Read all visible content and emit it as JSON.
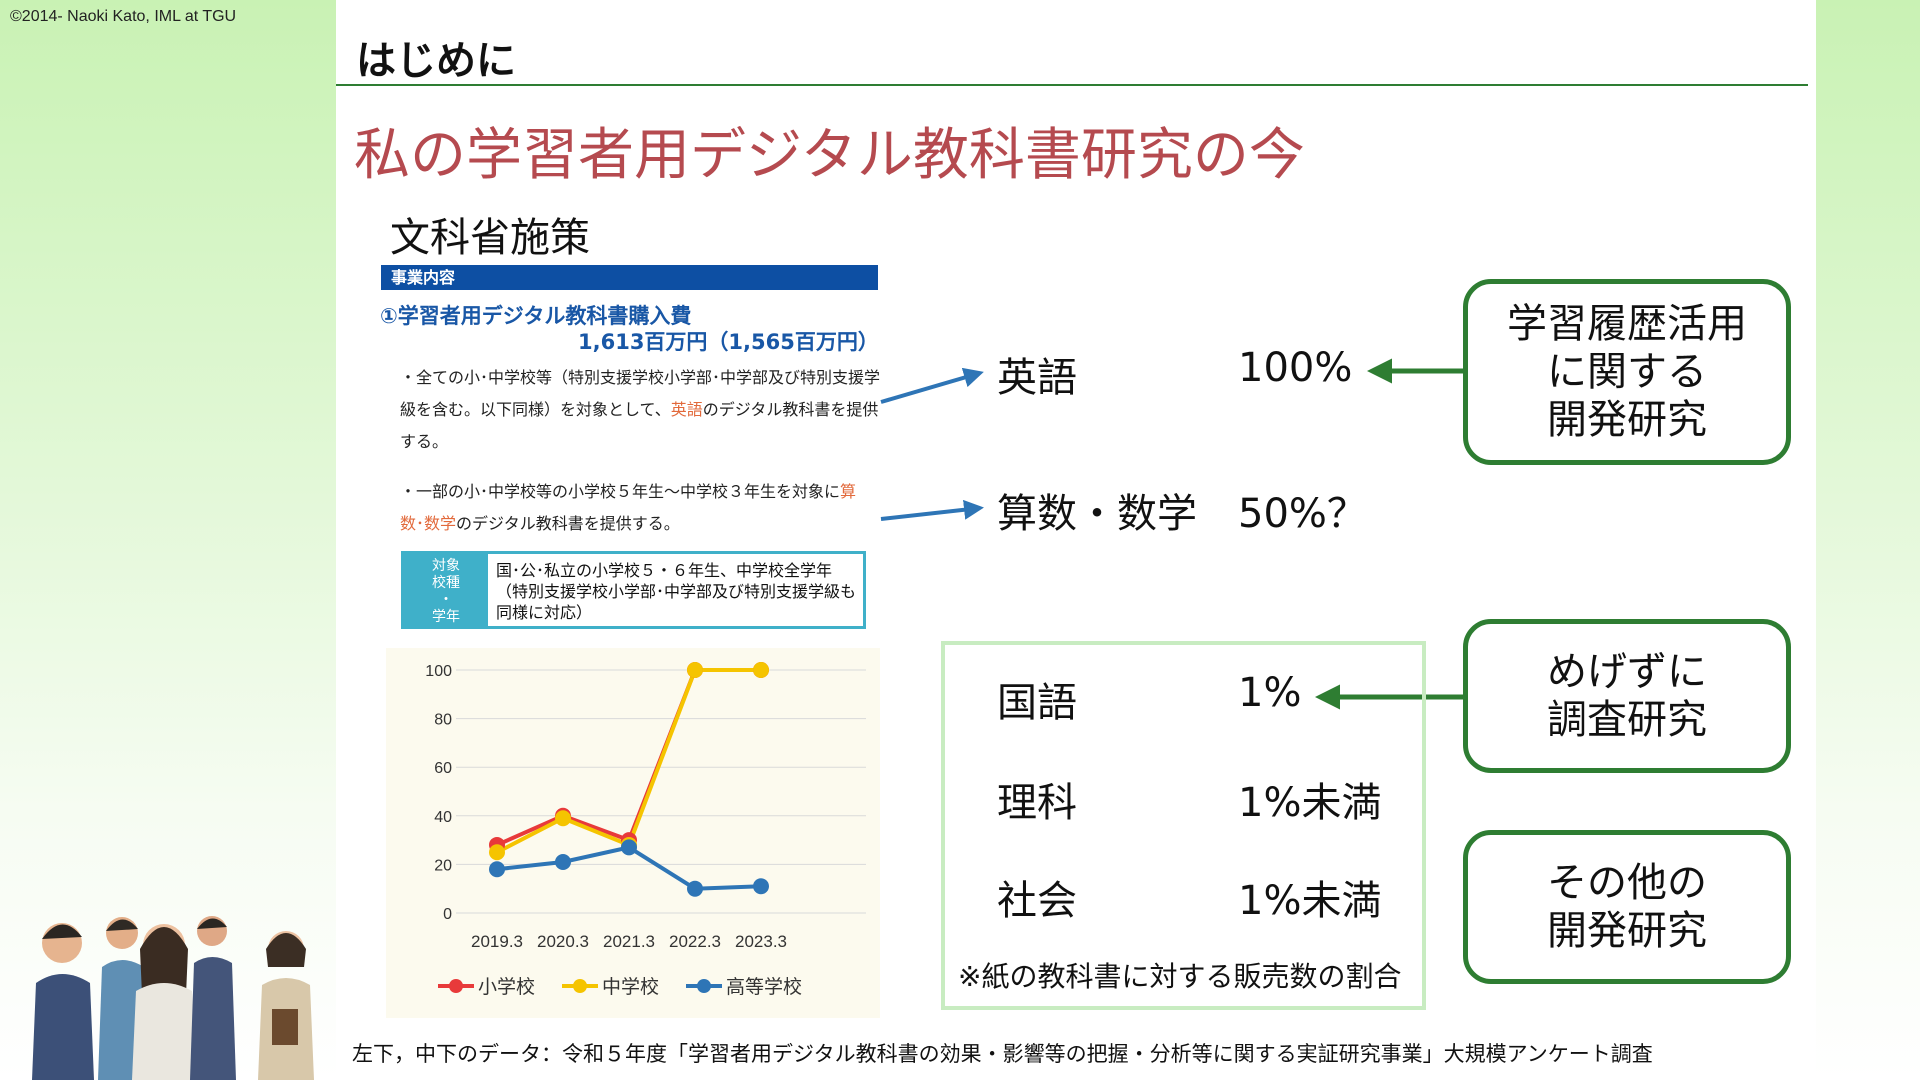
{
  "copyright": "©2014- Naoki Kato, IML at TGU",
  "header": {
    "title": "はじめに"
  },
  "main_title": "私の学習者用デジタル教科書研究の今",
  "section_title": "文科省施策",
  "policy": {
    "bar_label": "事業内容",
    "item_title": "①学習者用デジタル教科書購入費",
    "item_budget": "1,613百万円（1,565百万円）",
    "bullet1": {
      "pre": "・全ての小･中学校等（特別支援学校小学部･中学部及び特別支援学級を含む。以下同様）を対象として、",
      "highlight": "英語",
      "post": "のデジタル教科書を提供する。"
    },
    "bullet2": {
      "pre": "・一部の小･中学校等の小学校５年生～中学校３年生を対象に",
      "highlight": "算数･数学",
      "post": "のデジタル教科書を提供する。"
    },
    "target_label": "対象\n校種\n・\n学年",
    "target_text": "国･公･私立の小学校５・６年生、中学校全学年（特別支援学校小学部･中学部及び特別支援学級も同様に対応）"
  },
  "chart_data": {
    "type": "line",
    "x": [
      "2019.3",
      "2020.3",
      "2021.3",
      "2022.3",
      "2023.3"
    ],
    "ylim": [
      0,
      100
    ],
    "yticks": [
      0,
      20,
      40,
      60,
      80,
      100
    ],
    "grid": true,
    "legend_position": "bottom",
    "series": [
      {
        "name": "小学校",
        "color": "#e83a3a",
        "values": [
          28,
          40,
          30,
          100,
          100
        ]
      },
      {
        "name": "中学校",
        "color": "#f5c400",
        "values": [
          25,
          39,
          28,
          100,
          100
        ]
      },
      {
        "name": "高等学校",
        "color": "#2e75b6",
        "values": [
          18,
          21,
          27,
          10,
          11
        ]
      }
    ]
  },
  "subjects": {
    "english": {
      "name": "英語",
      "pct": "100%"
    },
    "math": {
      "name": "算数・数学",
      "pct": "50%？"
    },
    "japanese": {
      "name": "国語",
      "pct": "1%"
    },
    "science": {
      "name": "理科",
      "pct": "1%未満"
    },
    "social": {
      "name": "社会",
      "pct": "1%未満"
    }
  },
  "note": "※紙の教科書に対する販売数の割合",
  "boxes": {
    "box1": "学習履歴活用\nに関する\n開発研究",
    "box2": "めげずに\n調査研究",
    "box3": "その他の\n開発研究"
  },
  "footer": "左下，中下のデータ：令和５年度「学習者用デジタル教科書の効果・影響等の把握・分析等に関する実証研究事業」大規模アンケート調査",
  "colors": {
    "title_red": "#b54a4f",
    "accent_green": "#2e7d32",
    "arrow_blue": "#2e75b6",
    "policy_blue": "#0d4fa3"
  }
}
